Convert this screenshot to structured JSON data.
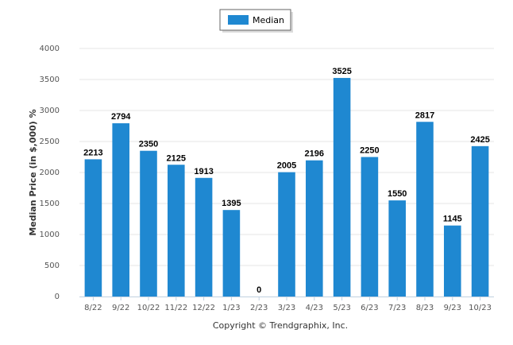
{
  "chart_data": {
    "type": "bar",
    "title": "",
    "xlabel": "",
    "ylabel": "Median Price (in $,000) %",
    "categories": [
      "8/22",
      "9/22",
      "10/22",
      "11/22",
      "12/22",
      "1/23",
      "2/23",
      "3/23",
      "4/23",
      "5/23",
      "6/23",
      "7/23",
      "8/23",
      "9/23",
      "10/23"
    ],
    "series": [
      {
        "name": "Median",
        "values": [
          2213,
          2794,
          2350,
          2125,
          1913,
          1395,
          0,
          2005,
          2196,
          3525,
          2250,
          1550,
          2817,
          1145,
          2425
        ]
      }
    ],
    "ylim": [
      0,
      4000
    ],
    "yticks": [
      0,
      500,
      1000,
      1500,
      2000,
      2500,
      3000,
      3500,
      4000
    ],
    "grid": true,
    "legend_position": "top-center",
    "credit": "Copyright © Trendgraphix, Inc.",
    "colors": {
      "bar": "#1f88d1",
      "grid": "#e4e4e4",
      "axis": "#c0d0e0"
    }
  }
}
